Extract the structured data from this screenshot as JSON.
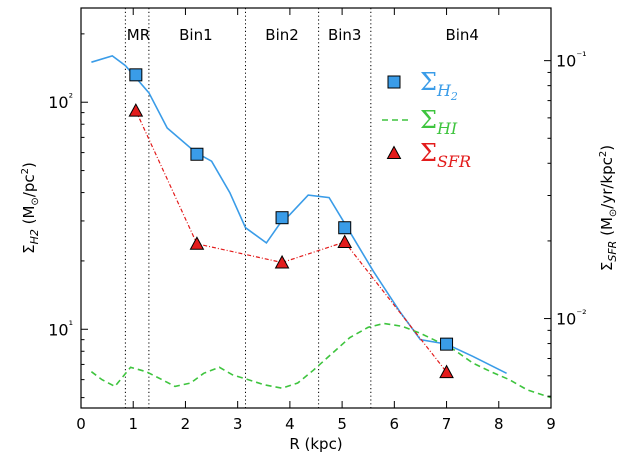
{
  "chart_data": {
    "type": "line",
    "xlabel": "R (kpc)",
    "ylabel_left": "Σ_H2 (M_⊙/pc²)",
    "ylabel_right": "Σ_SFR (M_⊙/yr/kpc²)",
    "xlim": [
      0,
      9
    ],
    "ylim_left": [
      4.5,
      260
    ],
    "ylim_right": [
      0.0045,
      0.16
    ],
    "yscale": "log",
    "x_ticks": [
      "0",
      "1",
      "2",
      "3",
      "4",
      "5",
      "6",
      "7",
      "8",
      "9"
    ],
    "y_left_ticks": [
      {
        "value": 10,
        "label": "10¹"
      },
      {
        "value": 100,
        "label": "10²"
      }
    ],
    "y_right_ticks": [
      {
        "value": 0.01,
        "label": "10⁻²"
      },
      {
        "value": 0.1,
        "label": "10⁻¹"
      }
    ],
    "grid": false,
    "legend_position": "top-right",
    "bin_boundaries": [
      0.85,
      1.3,
      3.15,
      4.55,
      5.55
    ],
    "bin_labels": [
      {
        "label": "MR",
        "x": 1.1
      },
      {
        "label": "Bin1",
        "x": 2.2
      },
      {
        "label": "Bin2",
        "x": 3.85
      },
      {
        "label": "Bin3",
        "x": 5.05
      },
      {
        "label": "Bin4",
        "x": 7.3
      }
    ],
    "series": [
      {
        "name": "Σ_H2 profile",
        "style": "solid",
        "color": "#3a9ce8",
        "axis": "left",
        "x": [
          0.2,
          0.6,
          0.85,
          1.3,
          1.65,
          2.2,
          2.5,
          2.85,
          3.15,
          3.55,
          3.8,
          4.0,
          4.35,
          4.75,
          5.1,
          5.6,
          6.1,
          6.5,
          7.0,
          7.5,
          8.15
        ],
        "values": [
          150,
          160,
          145,
          110,
          77,
          60,
          55,
          40,
          28,
          24,
          29,
          32,
          39,
          38,
          28,
          18,
          12,
          9,
          8.6,
          7.6,
          6.4
        ]
      },
      {
        "name": "Σ_HI",
        "style": "dashed",
        "color": "#3ec43e",
        "axis": "left",
        "x": [
          0.2,
          0.4,
          0.65,
          0.95,
          1.25,
          1.55,
          1.8,
          2.1,
          2.35,
          2.65,
          2.9,
          3.2,
          3.5,
          3.85,
          4.15,
          4.45,
          4.8,
          5.15,
          5.5,
          5.8,
          6.15,
          6.5,
          6.8,
          7.15,
          7.5,
          7.85,
          8.2,
          8.55,
          9.0
        ],
        "values": [
          6.5,
          6.0,
          5.6,
          6.8,
          6.5,
          6.0,
          5.6,
          5.8,
          6.4,
          6.8,
          6.3,
          6.0,
          5.7,
          5.5,
          5.8,
          6.6,
          7.8,
          9.2,
          10.2,
          10.6,
          10.3,
          9.6,
          8.9,
          8.1,
          7.1,
          6.5,
          6.0,
          5.4,
          5.0
        ]
      },
      {
        "name": "Σ_H2",
        "style": "markers",
        "marker": "square",
        "color": "#3a9ce8",
        "axis": "left",
        "x": [
          1.05,
          2.22,
          3.85,
          5.05,
          7.0
        ],
        "values": [
          132,
          59,
          31,
          28,
          8.6
        ]
      },
      {
        "name": "Σ_SFR",
        "style": "dash-dot",
        "marker": "triangle",
        "color": "#e31b1b",
        "axis": "right",
        "x": [
          1.05,
          2.22,
          3.85,
          5.05,
          7.0
        ],
        "values": [
          0.064,
          0.0195,
          0.0165,
          0.0198,
          0.0062
        ]
      }
    ],
    "legend": [
      {
        "label": "Σ_H2",
        "main": "Σ",
        "sub": "H",
        "subsub": "2",
        "color": "#3a9ce8",
        "marker": "square"
      },
      {
        "label": "Σ_HI",
        "main": "Σ",
        "sub": "HI",
        "color": "#3ec43e",
        "marker": "dashed-line"
      },
      {
        "label": "Σ_SFR",
        "main": "Σ",
        "sub": "SFR",
        "color": "#e31b1b",
        "marker": "triangle"
      }
    ]
  }
}
